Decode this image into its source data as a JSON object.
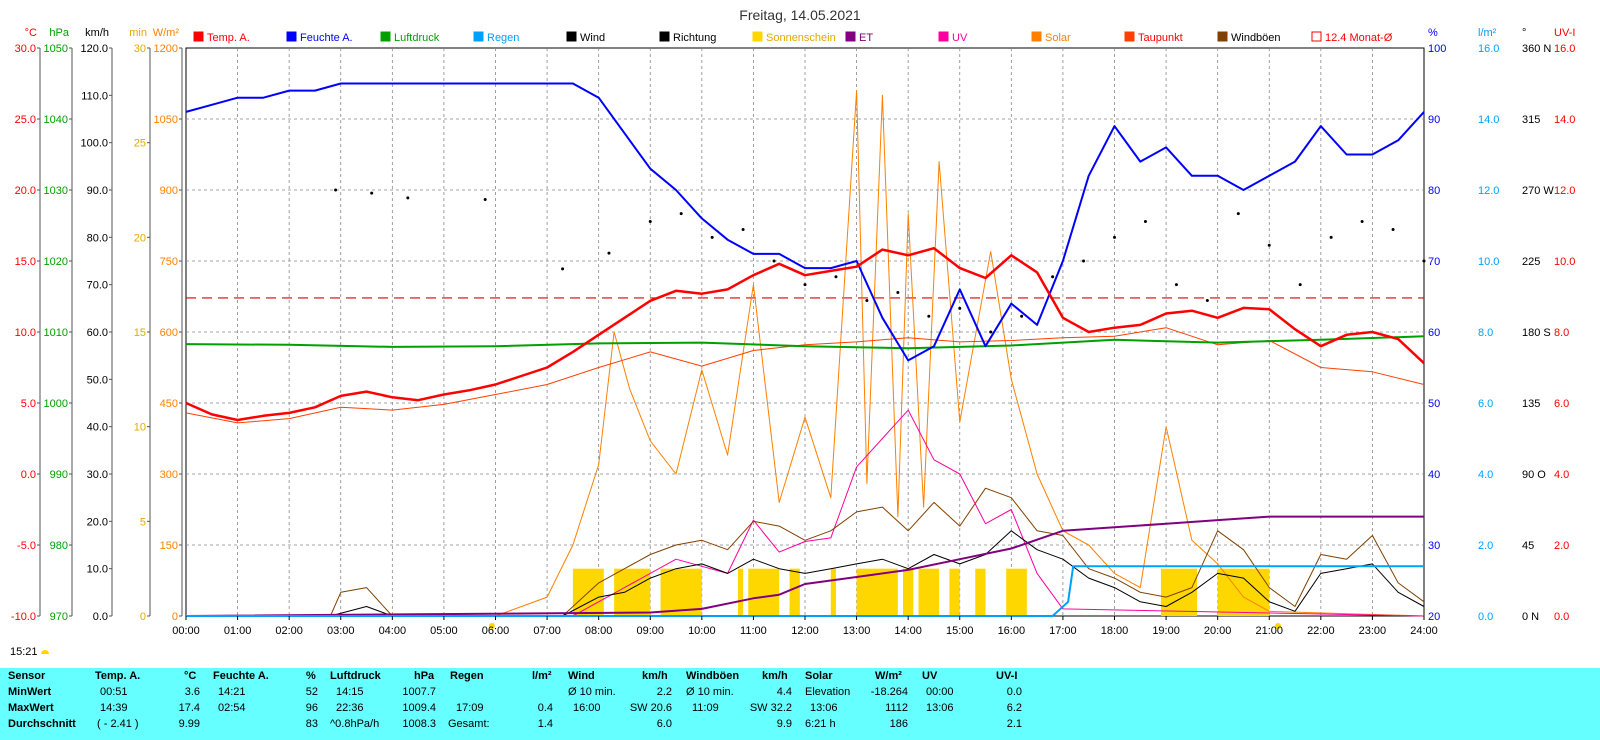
{
  "chart_data": {
    "type": "line",
    "title": "Freitag, 14.05.2021",
    "x_ticks": [
      "00:00",
      "01:00",
      "02:00",
      "03:00",
      "04:00",
      "05:00",
      "06:00",
      "07:00",
      "08:00",
      "09:00",
      "10:00",
      "11:00",
      "12:00",
      "13:00",
      "14:00",
      "15:00",
      "16:00",
      "17:00",
      "18:00",
      "19:00",
      "20:00",
      "21:00",
      "22:00",
      "23:00",
      "24:00"
    ],
    "left_axes": [
      {
        "unit": "°C",
        "color": "#ff0000",
        "ticks": [
          "30.0",
          "25.0",
          "20.0",
          "15.0",
          "10.0",
          "5.0",
          "0.0",
          "-5.0",
          "-10.0"
        ],
        "range": [
          -10,
          30
        ]
      },
      {
        "unit": "hPa",
        "color": "#00a000",
        "ticks": [
          "1050",
          "1040",
          "1030",
          "1020",
          "1010",
          "1000",
          "990",
          "980",
          "970"
        ],
        "range": [
          970,
          1050
        ]
      },
      {
        "unit": "km/h",
        "color": "#000000",
        "ticks": [
          "120.0",
          "110.0",
          "100.0",
          "90.0",
          "80.0",
          "70.0",
          "60.0",
          "50.0",
          "40.0",
          "30.0",
          "20.0",
          "10.0",
          "0.0"
        ],
        "range": [
          0,
          120
        ]
      },
      {
        "unit": "min",
        "color": "#e6a800",
        "ticks": [
          "30",
          "25",
          "20",
          "15",
          "10",
          "5",
          "0"
        ],
        "range": [
          0,
          30
        ]
      },
      {
        "unit": "W/m²",
        "color": "#ff8000",
        "ticks": [
          "1200",
          "1050",
          "900",
          "750",
          "600",
          "450",
          "300",
          "150",
          "0"
        ],
        "range": [
          0,
          1200
        ]
      }
    ],
    "right_axes": [
      {
        "unit": "%",
        "color": "#0000ff",
        "ticks": [
          "100",
          "90",
          "80",
          "70",
          "60",
          "50",
          "40",
          "30",
          "20"
        ],
        "range": [
          20,
          100
        ]
      },
      {
        "unit": "l/m²",
        "color": "#00a0ff",
        "ticks": [
          "16.0",
          "14.0",
          "12.0",
          "10.0",
          "8.0",
          "6.0",
          "4.0",
          "2.0",
          "0.0"
        ],
        "range": [
          0,
          16
        ]
      },
      {
        "unit": "°",
        "color": "#000000",
        "ticks": [
          "360 N",
          "315",
          "270 W",
          "225",
          "180 S",
          "135",
          "90 O",
          "45",
          "0 N"
        ],
        "range": [
          0,
          360
        ]
      },
      {
        "unit": "UV-I",
        "color": "#ff0000",
        "ticks": [
          "16.0",
          "14.0",
          "12.0",
          "10.0",
          "8.0",
          "6.0",
          "4.0",
          "2.0",
          "0.0"
        ],
        "range": [
          0,
          16
        ]
      }
    ],
    "legend": [
      {
        "name": "Temp. A.",
        "color": "#ff0000",
        "text_color": "#ff0000"
      },
      {
        "name": "Feuchte A.",
        "color": "#0000ff",
        "text_color": "#0000ff"
      },
      {
        "name": "Luftdruck",
        "color": "#00a000",
        "text_color": "#00a000"
      },
      {
        "name": "Regen",
        "color": "#00a0ff",
        "text_color": "#00a0ff"
      },
      {
        "name": "Wind",
        "color": "#000000",
        "text_color": "#000000"
      },
      {
        "name": "Richtung",
        "color": "#000000",
        "text_color": "#000000"
      },
      {
        "name": "Sonnenschein",
        "color": "#ffd700",
        "text_color": "#e6a800"
      },
      {
        "name": "ET",
        "color": "#800080",
        "text_color": "#800080"
      },
      {
        "name": "UV",
        "color": "#ff00a0",
        "text_color": "#ff00a0"
      },
      {
        "name": "Solar",
        "color": "#ff8000",
        "text_color": "#ff8000"
      },
      {
        "name": "Taupunkt",
        "color": "#ff4000",
        "text_color": "#ff0000"
      },
      {
        "name": "Windböen",
        "color": "#804000",
        "text_color": "#000000"
      },
      {
        "name": "12.4 Monat-Ø",
        "color": "#ff0000",
        "text_color": "#ff0000"
      }
    ],
    "monthly_avg_temp": 12.4,
    "series": [
      {
        "name": "Temp. A.",
        "color": "#ff0000",
        "axis": "°C",
        "x": [
          0,
          0.5,
          1,
          1.5,
          2,
          2.5,
          3,
          3.5,
          4,
          4.5,
          5,
          5.5,
          6,
          6.5,
          7,
          7.5,
          8,
          8.5,
          9,
          9.5,
          10,
          10.5,
          11,
          11.5,
          12,
          12.5,
          13,
          13.5,
          14,
          14.5,
          15,
          15.5,
          16,
          16.5,
          17,
          17.5,
          18,
          18.5,
          19,
          19.5,
          20,
          20.5,
          21,
          21.5,
          22,
          22.5,
          23,
          23.5,
          24
        ],
        "y": [
          5.0,
          4.2,
          3.8,
          4.1,
          4.3,
          4.7,
          5.5,
          5.8,
          5.4,
          5.2,
          5.6,
          5.9,
          6.3,
          6.9,
          7.5,
          8.6,
          9.8,
          11.0,
          12.2,
          12.9,
          12.7,
          13.0,
          14.0,
          14.8,
          14.0,
          14.3,
          14.6,
          15.8,
          15.4,
          15.9,
          14.5,
          13.8,
          15.4,
          14.2,
          11.0,
          10.0,
          10.3,
          10.5,
          11.3,
          11.5,
          11.0,
          11.7,
          11.6,
          10.2,
          9.0,
          9.8,
          10.0,
          9.5,
          7.8
        ]
      },
      {
        "name": "Taupunkt",
        "color": "#ff4000",
        "axis": "°C",
        "x": [
          0,
          1,
          2,
          3,
          4,
          5,
          6,
          7,
          8,
          9,
          10,
          11,
          12,
          13,
          14,
          15,
          16,
          17,
          18,
          19,
          20,
          21,
          22,
          23,
          24
        ],
        "y": [
          4.3,
          3.6,
          3.9,
          4.7,
          4.5,
          4.9,
          5.6,
          6.3,
          7.5,
          8.6,
          7.6,
          8.7,
          9.1,
          9.3,
          9.6,
          9.3,
          9.4,
          9.6,
          9.7,
          10.3,
          9.1,
          9.4,
          7.5,
          7.2,
          6.3
        ]
      },
      {
        "name": "Feuchte A.",
        "color": "#0000ff",
        "axis": "%",
        "x": [
          0,
          0.5,
          1,
          1.5,
          2,
          2.5,
          3,
          4,
          5,
          6,
          7,
          7.5,
          8,
          8.5,
          9,
          9.5,
          10,
          10.5,
          11,
          11.5,
          12,
          12.5,
          13,
          13.5,
          14,
          14.5,
          15,
          15.5,
          16,
          16.5,
          17,
          17.5,
          18,
          18.5,
          19,
          19.5,
          20,
          20.5,
          21,
          21.5,
          22,
          22.5,
          23,
          23.5,
          24
        ],
        "y": [
          91,
          92,
          93,
          93,
          94,
          94,
          95,
          95,
          95,
          95,
          95,
          95,
          93,
          88,
          83,
          80,
          76,
          73,
          71,
          71,
          69,
          69,
          70,
          62,
          56,
          58,
          66,
          58,
          64,
          61,
          70,
          82,
          89,
          84,
          86,
          82,
          82,
          80,
          82,
          84,
          89,
          85,
          85,
          87,
          91
        ]
      },
      {
        "name": "Luftdruck",
        "color": "#00a000",
        "axis": "hPa",
        "x": [
          0,
          2,
          4,
          6,
          8,
          10,
          12,
          14,
          16,
          18,
          20,
          22,
          24
        ],
        "y": [
          1008.3,
          1008.2,
          1007.9,
          1008.0,
          1008.4,
          1008.5,
          1008.0,
          1007.7,
          1008.1,
          1008.9,
          1008.5,
          1008.9,
          1009.4
        ]
      },
      {
        "name": "Regen",
        "color": "#00a0ff",
        "axis": "l/m²",
        "x": [
          0,
          16.8,
          17.1,
          17.2,
          24
        ],
        "y": [
          0,
          0,
          0.4,
          1.4,
          1.4
        ]
      },
      {
        "name": "ET",
        "color": "#800080",
        "axis": "l/m²",
        "x": [
          0,
          9,
          10,
          11,
          11.5,
          12,
          13,
          14,
          15,
          16,
          17,
          18,
          19,
          20,
          21,
          22,
          23,
          24
        ],
        "y": [
          0,
          0.1,
          0.2,
          0.5,
          0.6,
          0.9,
          1.1,
          1.3,
          1.6,
          1.9,
          2.4,
          2.5,
          2.6,
          2.7,
          2.8,
          2.8,
          2.8,
          2.8
        ]
      },
      {
        "name": "Solar",
        "color": "#ff8000",
        "axis": "W/m²",
        "x": [
          0,
          6,
          7,
          7.5,
          8,
          8.3,
          8.6,
          9,
          9.5,
          10,
          10.5,
          11,
          11.5,
          12,
          12.5,
          13,
          13.2,
          13.5,
          13.8,
          14,
          14.3,
          14.6,
          15,
          15.3,
          15.6,
          16,
          16.5,
          17,
          17.5,
          18,
          18.5,
          19,
          19.5,
          20,
          20.5,
          21,
          24
        ],
        "y": [
          0,
          0,
          40,
          150,
          320,
          600,
          480,
          370,
          300,
          520,
          340,
          700,
          240,
          420,
          250,
          1110,
          280,
          1100,
          210,
          850,
          230,
          960,
          410,
          590,
          770,
          500,
          300,
          180,
          150,
          90,
          60,
          400,
          160,
          110,
          40,
          10,
          0
        ]
      },
      {
        "name": "UV",
        "color": "#ff00a0",
        "axis": "UV-I",
        "x": [
          0,
          7.5,
          8.5,
          9.5,
          10.5,
          11,
          11.5,
          12,
          12.5,
          13,
          13.5,
          14,
          14.5,
          15,
          15.5,
          16,
          16.5,
          17,
          24
        ],
        "y": [
          0,
          0,
          0.8,
          1.6,
          1.2,
          2.7,
          1.8,
          2.1,
          2.2,
          4.2,
          5.0,
          5.8,
          4.4,
          4.0,
          2.6,
          3.0,
          1.2,
          0.2,
          0
        ]
      },
      {
        "name": "Wind",
        "color": "#000000",
        "axis": "km/h",
        "x": [
          0,
          2.8,
          3.5,
          4,
          6,
          7.3,
          8,
          8.5,
          9,
          9.5,
          10,
          10.5,
          11,
          11.5,
          12,
          12.5,
          13,
          13.5,
          14,
          14.5,
          15,
          15.5,
          16,
          16.5,
          17,
          17.5,
          18,
          18.5,
          19,
          19.5,
          20,
          20.5,
          21,
          21.5,
          22,
          22.5,
          23,
          23.5,
          24
        ],
        "y": [
          0,
          0,
          2,
          0,
          0,
          0,
          4,
          5,
          8,
          10,
          11,
          9,
          12,
          10,
          9,
          10,
          11,
          12,
          10,
          13,
          11,
          13,
          18,
          14,
          12,
          8,
          6,
          3,
          2,
          5,
          9,
          8,
          3,
          1,
          9,
          10,
          11,
          5,
          2
        ]
      },
      {
        "name": "Windböen",
        "color": "#804000",
        "axis": "km/h",
        "x": [
          0,
          2.8,
          3,
          3.5,
          4,
          6,
          7.3,
          8,
          8.5,
          9,
          9.5,
          10,
          10.5,
          11,
          11.5,
          12,
          12.5,
          13,
          13.5,
          14,
          14.5,
          15,
          15.5,
          16,
          16.5,
          17,
          17.5,
          18,
          18.5,
          19,
          19.5,
          20,
          20.5,
          21,
          21.5,
          22,
          22.5,
          23,
          23.5,
          24
        ],
        "y": [
          0,
          0,
          5,
          6,
          0,
          0,
          0,
          7,
          10,
          13,
          15,
          16,
          14,
          20,
          19,
          16,
          18,
          22,
          23,
          18,
          24,
          19,
          27,
          25,
          18,
          17,
          10,
          8,
          5,
          4,
          6,
          18,
          14,
          6,
          2,
          13,
          12,
          17,
          7,
          3
        ]
      },
      {
        "name": "Richtung",
        "color": "#000000",
        "axis": "°",
        "x": [
          2.9,
          3.6,
          4.3,
          5.8,
          7.3,
          8.2,
          9.0,
          9.6,
          10.2,
          10.8,
          11.4,
          12.0,
          12.6,
          13.2,
          13.8,
          14.4,
          15.0,
          15.6,
          16.2,
          16.8,
          17.4,
          18.0,
          18.6,
          19.2,
          19.8,
          20.4,
          21.0,
          21.6,
          22.2,
          22.8,
          23.4,
          24
        ],
        "y": [
          270,
          268,
          265,
          264,
          220,
          230,
          250,
          255,
          240,
          245,
          225,
          210,
          215,
          200,
          205,
          190,
          195,
          180,
          190,
          215,
          225,
          240,
          250,
          210,
          200,
          255,
          235,
          210,
          240,
          250,
          245,
          225
        ]
      },
      {
        "name": "Sonnenschein",
        "color": "#ffd700",
        "axis": "min",
        "intervals": [
          [
            7.5,
            8.1
          ],
          [
            8.3,
            9.0
          ],
          [
            9.2,
            10.0
          ],
          [
            10.7,
            10.8
          ],
          [
            10.9,
            11.5
          ],
          [
            11.7,
            11.9
          ],
          [
            12.5,
            12.6
          ],
          [
            13.0,
            13.8
          ],
          [
            13.9,
            14.1
          ],
          [
            14.2,
            14.6
          ],
          [
            14.8,
            15.0
          ],
          [
            15.3,
            15.5
          ],
          [
            15.9,
            16.3
          ],
          [
            18.9,
            19.6
          ],
          [
            20.0,
            21.0
          ]
        ]
      }
    ]
  },
  "footer": {
    "time": "15:21"
  },
  "stats": {
    "row_labels": [
      "Sensor",
      "MinWert",
      "MaxWert",
      "Durchschnitt"
    ],
    "temp": {
      "title": "Temp. A.",
      "unit": "°C",
      "min_time": "00:51",
      "min": "3.6",
      "max_time": "14:39",
      "max": "17.4",
      "avg_note": "( - 2.41 )",
      "avg": "9.99"
    },
    "humidity": {
      "title": "Feuchte A.",
      "unit": "%",
      "min_time": "14:21",
      "min": "52",
      "max_time": "02:54",
      "max": "96",
      "avg": "83"
    },
    "pressure": {
      "title": "Luftdruck",
      "unit": "hPa",
      "min_time": "14:15",
      "min": "1007.7",
      "max_time": "22:36",
      "max": "1009.4",
      "avg_note": "^0.8hPa/h",
      "avg": "1008.3"
    },
    "rain": {
      "title": "Regen",
      "unit": "l/m²",
      "max_time": "17:09",
      "max": "0.4",
      "total_label": "Gesamt:",
      "total": "1.4"
    },
    "wind": {
      "title": "Wind",
      "unit": "km/h",
      "min_label": "Ø 10 min.",
      "min": "2.2",
      "max_time": "16:00",
      "max_dir": "SW 20.6",
      "avg": "6.0"
    },
    "gusts": {
      "title": "Windböen",
      "unit": "km/h",
      "min_label": "Ø 10 min.",
      "min": "4.4",
      "max_time": "11:09",
      "max_dir": "SW 32.2",
      "avg": "9.9"
    },
    "solar": {
      "title": "Solar",
      "unit": "W/m²",
      "elev_label": "Elevation",
      "elev": "-18.264",
      "max_time": "13:06",
      "max": "1112",
      "sun_hours": "6:21 h",
      "avg": "186"
    },
    "uv": {
      "title": "UV",
      "unit": "UV-I",
      "min_time": "00:00",
      "min": "0.0",
      "max_time": "13:06",
      "max": "6.2",
      "avg": "2.1"
    }
  }
}
